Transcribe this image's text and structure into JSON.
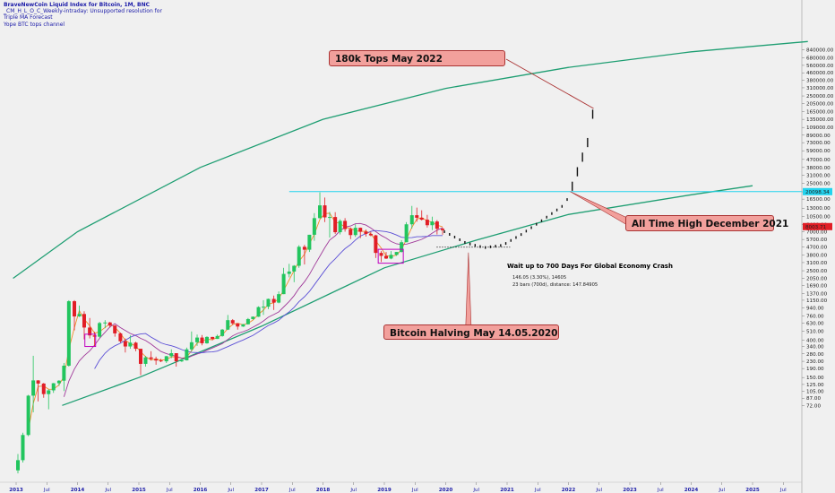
{
  "legend": {
    "title": "BraveNewCoin Liquid Index for Bitcoin, 1M, BNC",
    "line2": "_CM_H_L_O_C_Weekly-intraday: Unsupported resolution for",
    "line3": "Triple MA Forecast",
    "line4": "Yope BTC tops channel"
  },
  "callouts": {
    "top": "180k Tops May 2022",
    "ath": "All Time High December 2021",
    "halving": "Bitcoin Halving May 14.05.2020"
  },
  "annotation": {
    "title": "Wait up to 700 Days For Global Economy Crash",
    "line1": "146.05 (3.30%), 14605",
    "line2": "23 bars (700d), distance: 147.84905"
  },
  "colors": {
    "up": "#22c55e",
    "down": "#e11d26",
    "channel": "#1e9e72",
    "hline": "#22d3ee",
    "ma_fast": "#f28c28",
    "ma_mid": "#a03a9a",
    "ma_slow": "#5b4fd6",
    "callout": "#f2a09c",
    "box": "#c000c0"
  },
  "price_labels": {
    "hline": "20098.34",
    "current": "8003.71"
  },
  "chart_data": {
    "type": "candlestick",
    "scale": "log",
    "x_ticks": [
      "2013",
      "Jul",
      "2014",
      "Jul",
      "2015",
      "Jul",
      "2016",
      "Jul",
      "2017",
      "Jul",
      "2018",
      "Jul",
      "2019",
      "Jul",
      "2020",
      "Jul",
      "2021",
      "Jul",
      "2022",
      "Jul",
      "2023",
      "Jul",
      "2024",
      "Jul",
      "2025",
      "Jul"
    ],
    "y_ticks": [
      "72.00",
      "87.00",
      "105.00",
      "125.00",
      "150.00",
      "190.00",
      "230.00",
      "280.00",
      "340.00",
      "400.00",
      "510.00",
      "630.00",
      "760.00",
      "940.00",
      "1150.00",
      "1370.00",
      "1690.00",
      "2050.00",
      "2500.00",
      "3100.00",
      "3800.00",
      "4700.00",
      "5700.00",
      "7000.00",
      "8400.00",
      "10500.00",
      "13000.00",
      "16500.00",
      "20000.00",
      "25000.00",
      "31000.00",
      "38000.00",
      "47000.00",
      "59000.00",
      "73000.00",
      "89000.00",
      "109000.00",
      "135000.00",
      "165000.00",
      "205000.00",
      "250000.00",
      "310000.00",
      "380000.00",
      "460000.00",
      "560000.00",
      "680000.00",
      "840000.00"
    ],
    "hline_value": 20098.34,
    "current_price": 8003.71,
    "candles_monthly": [
      [
        2013.0,
        13,
        20,
        12,
        17
      ],
      [
        2013.08,
        17,
        35,
        16,
        33
      ],
      [
        2013.17,
        33,
        95,
        32,
        93
      ],
      [
        2013.25,
        93,
        266,
        60,
        139
      ],
      [
        2013.33,
        139,
        140,
        80,
        128
      ],
      [
        2013.42,
        128,
        130,
        88,
        97
      ],
      [
        2013.5,
        97,
        110,
        65,
        107
      ],
      [
        2013.58,
        107,
        130,
        100,
        129
      ],
      [
        2013.67,
        129,
        140,
        120,
        138
      ],
      [
        2013.75,
        138,
        220,
        105,
        205
      ],
      [
        2013.83,
        205,
        1150,
        200,
        1120
      ],
      [
        2013.92,
        1120,
        1150,
        520,
        750
      ],
      [
        2014.0,
        750,
        1000,
        740,
        800
      ],
      [
        2014.08,
        800,
        860,
        410,
        560
      ],
      [
        2014.17,
        560,
        720,
        420,
        455
      ],
      [
        2014.25,
        455,
        500,
        340,
        440
      ],
      [
        2014.33,
        440,
        650,
        430,
        630
      ],
      [
        2014.42,
        630,
        680,
        550,
        640
      ],
      [
        2014.5,
        640,
        650,
        560,
        590
      ],
      [
        2014.58,
        590,
        600,
        440,
        480
      ],
      [
        2014.67,
        480,
        490,
        375,
        390
      ],
      [
        2014.75,
        390,
        420,
        290,
        340
      ],
      [
        2014.83,
        340,
        455,
        320,
        376
      ],
      [
        2014.92,
        376,
        385,
        300,
        320
      ],
      [
        2015.0,
        320,
        320,
        160,
        215
      ],
      [
        2015.08,
        215,
        265,
        200,
        255
      ],
      [
        2015.17,
        255,
        300,
        235,
        245
      ],
      [
        2015.25,
        245,
        260,
        210,
        235
      ],
      [
        2015.33,
        235,
        245,
        225,
        230
      ],
      [
        2015.42,
        230,
        265,
        220,
        263
      ],
      [
        2015.5,
        263,
        315,
        250,
        285
      ],
      [
        2015.58,
        285,
        285,
        200,
        230
      ],
      [
        2015.67,
        230,
        245,
        225,
        236
      ],
      [
        2015.75,
        236,
        330,
        235,
        315
      ],
      [
        2015.83,
        315,
        505,
        300,
        380
      ],
      [
        2015.92,
        380,
        465,
        345,
        430
      ],
      [
        2016.0,
        430,
        460,
        350,
        370
      ],
      [
        2016.08,
        370,
        445,
        365,
        437
      ],
      [
        2016.17,
        437,
        438,
        400,
        415
      ],
      [
        2016.25,
        415,
        465,
        415,
        448
      ],
      [
        2016.33,
        448,
        540,
        440,
        530
      ],
      [
        2016.42,
        530,
        780,
        525,
        680
      ],
      [
        2016.5,
        680,
        700,
        600,
        625
      ],
      [
        2016.58,
        625,
        625,
        530,
        575
      ],
      [
        2016.67,
        575,
        615,
        570,
        610
      ],
      [
        2016.75,
        610,
        720,
        605,
        700
      ],
      [
        2016.83,
        700,
        750,
        690,
        745
      ],
      [
        2016.92,
        745,
        980,
        740,
        960
      ],
      [
        2017.0,
        960,
        1150,
        780,
        970
      ],
      [
        2017.08,
        970,
        1200,
        910,
        1190
      ],
      [
        2017.17,
        1190,
        1300,
        890,
        1080
      ],
      [
        2017.25,
        1080,
        1450,
        1060,
        1350
      ],
      [
        2017.33,
        1350,
        2700,
        1350,
        2300
      ],
      [
        2017.42,
        2300,
        3000,
        2100,
        2450
      ],
      [
        2017.5,
        2450,
        2900,
        1850,
        2850
      ],
      [
        2017.58,
        2850,
        4900,
        2700,
        4700
      ],
      [
        2017.67,
        4700,
        4950,
        2950,
        4350
      ],
      [
        2017.75,
        4350,
        6450,
        4100,
        6450
      ],
      [
        2017.83,
        6450,
        11400,
        5500,
        10000
      ],
      [
        2017.92,
        10000,
        19700,
        9900,
        14000
      ],
      [
        2018.0,
        14000,
        17200,
        9000,
        10200
      ],
      [
        2018.08,
        10200,
        11800,
        6000,
        10300
      ],
      [
        2018.17,
        10300,
        11700,
        6600,
        6900
      ],
      [
        2018.25,
        6900,
        9700,
        6500,
        9300
      ],
      [
        2018.33,
        9300,
        10000,
        7000,
        7500
      ],
      [
        2018.42,
        7500,
        7800,
        5750,
        6400
      ],
      [
        2018.5,
        6400,
        8500,
        6100,
        7750
      ],
      [
        2018.58,
        7750,
        7800,
        5900,
        7000
      ],
      [
        2018.67,
        7000,
        7400,
        6150,
        6600
      ],
      [
        2018.75,
        6600,
        7000,
        6200,
        6350
      ],
      [
        2018.83,
        6350,
        6450,
        3500,
        4000
      ],
      [
        2018.92,
        4000,
        4200,
        3150,
        3700
      ],
      [
        2019.0,
        3700,
        4100,
        3400,
        3450
      ],
      [
        2019.08,
        3450,
        4200,
        3380,
        3800
      ],
      [
        2019.17,
        3800,
        4100,
        3700,
        4100
      ],
      [
        2019.25,
        4100,
        5600,
        4050,
        5300
      ],
      [
        2019.33,
        5300,
        9000,
        5300,
        8500
      ],
      [
        2019.42,
        8500,
        13800,
        7600,
        10800
      ],
      [
        2019.5,
        10800,
        13200,
        9100,
        10100
      ],
      [
        2019.58,
        10100,
        12300,
        9400,
        9600
      ],
      [
        2019.67,
        9600,
        10900,
        7800,
        8300
      ],
      [
        2019.75,
        8300,
        10400,
        7300,
        9150
      ],
      [
        2019.83,
        9150,
        9500,
        6500,
        7550
      ],
      [
        2019.92,
        7550,
        7800,
        6450,
        7250
      ]
    ],
    "forecast": [
      {
        "x": 2019.9,
        "y": 7300
      },
      {
        "x": 2020.3,
        "y": 5200
      },
      {
        "x": 2020.6,
        "y": 4600
      },
      {
        "x": 2020.9,
        "y": 4900
      },
      {
        "x": 2021.2,
        "y": 6500
      },
      {
        "x": 2021.5,
        "y": 9000
      },
      {
        "x": 2021.92,
        "y": 14500
      },
      {
        "x": 2022.0,
        "y": 20098
      },
      {
        "x": 2022.15,
        "y": 40000
      },
      {
        "x": 2022.3,
        "y": 80000
      },
      {
        "x": 2022.38,
        "y": 180000
      }
    ],
    "channel_upper": [
      [
        2012.95,
        2050
      ],
      [
        2014,
        7000
      ],
      [
        2016,
        38000
      ],
      [
        2018,
        135000
      ],
      [
        2020,
        305000
      ],
      [
        2022,
        530000
      ],
      [
        2024,
        800000
      ],
      [
        2025.9,
        1050000
      ]
    ],
    "channel_lower": [
      [
        2013.75,
        72
      ],
      [
        2015,
        150
      ],
      [
        2017,
        580
      ],
      [
        2019,
        2700
      ],
      [
        2020.5,
        5600
      ],
      [
        2022,
        11000
      ],
      [
        2024,
        18500
      ],
      [
        2025.0,
        23500
      ]
    ]
  }
}
